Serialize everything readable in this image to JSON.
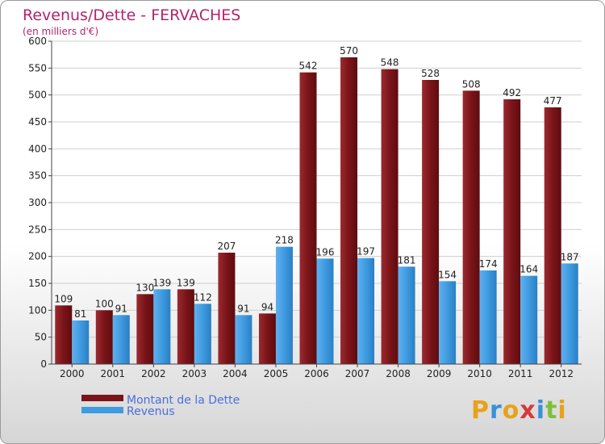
{
  "chart_data": {
    "type": "bar",
    "title": "Revenus/Dette - FERVACHES",
    "subtitle": "(en milliers d'€)",
    "categories": [
      "2000",
      "2001",
      "2002",
      "2003",
      "2004",
      "2005",
      "2006",
      "2007",
      "2008",
      "2009",
      "2010",
      "2011",
      "2012"
    ],
    "series": [
      {
        "name": "Montant de la Dette",
        "color": "#7a1418",
        "values": [
          109,
          100,
          130,
          139,
          207,
          94,
          542,
          570,
          548,
          528,
          508,
          492,
          477
        ]
      },
      {
        "name": "Revenus",
        "color": "#2f8fd8",
        "values": [
          81,
          91,
          139,
          112,
          91,
          218,
          196,
          197,
          181,
          154,
          174,
          164,
          187
        ]
      }
    ],
    "ylim": [
      0,
      600
    ],
    "yticks": [
      0,
      50,
      100,
      150,
      200,
      250,
      300,
      350,
      400,
      450,
      500,
      550,
      600
    ],
    "grid": true,
    "legend_position": "bottom-left"
  },
  "logo": {
    "letters": [
      "P",
      "r",
      "o",
      "x",
      "i",
      "t",
      "i"
    ],
    "colors": [
      "#e8a21a",
      "#3a8fd8",
      "#e8a21a",
      "#d43a3a",
      "#3a8fd8",
      "#7fbf3a",
      "#e8a21a"
    ]
  }
}
